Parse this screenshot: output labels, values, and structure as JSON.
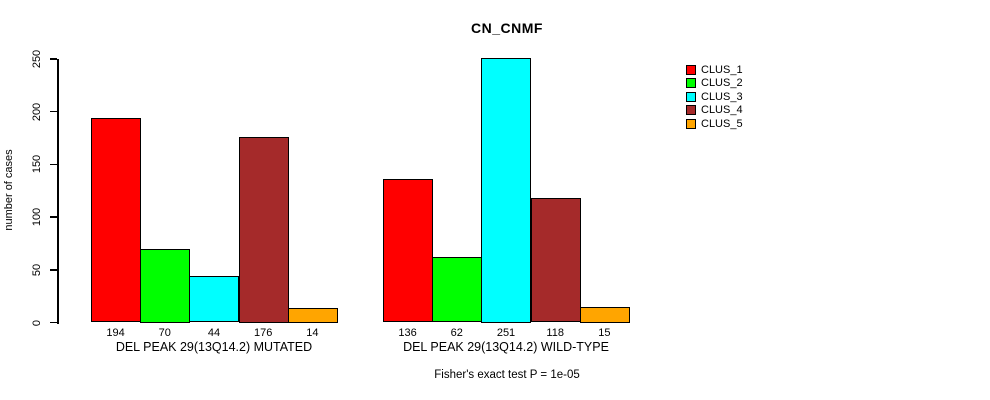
{
  "chart_data": {
    "type": "bar",
    "title": "CN_CNMF",
    "ylabel": "number of cases",
    "ylim": [
      0,
      250
    ],
    "yticks": [
      0,
      50,
      100,
      150,
      200,
      250
    ],
    "grid": false,
    "legend_position": "right",
    "legend": [
      {
        "label": "CLUS_1",
        "color": "#ff0000"
      },
      {
        "label": "CLUS_2",
        "color": "#00ff00"
      },
      {
        "label": "CLUS_3",
        "color": "#00ffff"
      },
      {
        "label": "CLUS_4",
        "color": "#a52a2a"
      },
      {
        "label": "CLUS_5",
        "color": "#ffa500"
      }
    ],
    "groups": [
      {
        "label": "DEL PEAK 29(13Q14.2) MUTATED",
        "values": [
          194,
          70,
          44,
          176,
          14
        ]
      },
      {
        "label": "DEL PEAK 29(13Q14.2) WILD-TYPE",
        "values": [
          136,
          62,
          251,
          118,
          15
        ]
      }
    ],
    "footnote": "Fisher's exact test P = 1e-05"
  }
}
